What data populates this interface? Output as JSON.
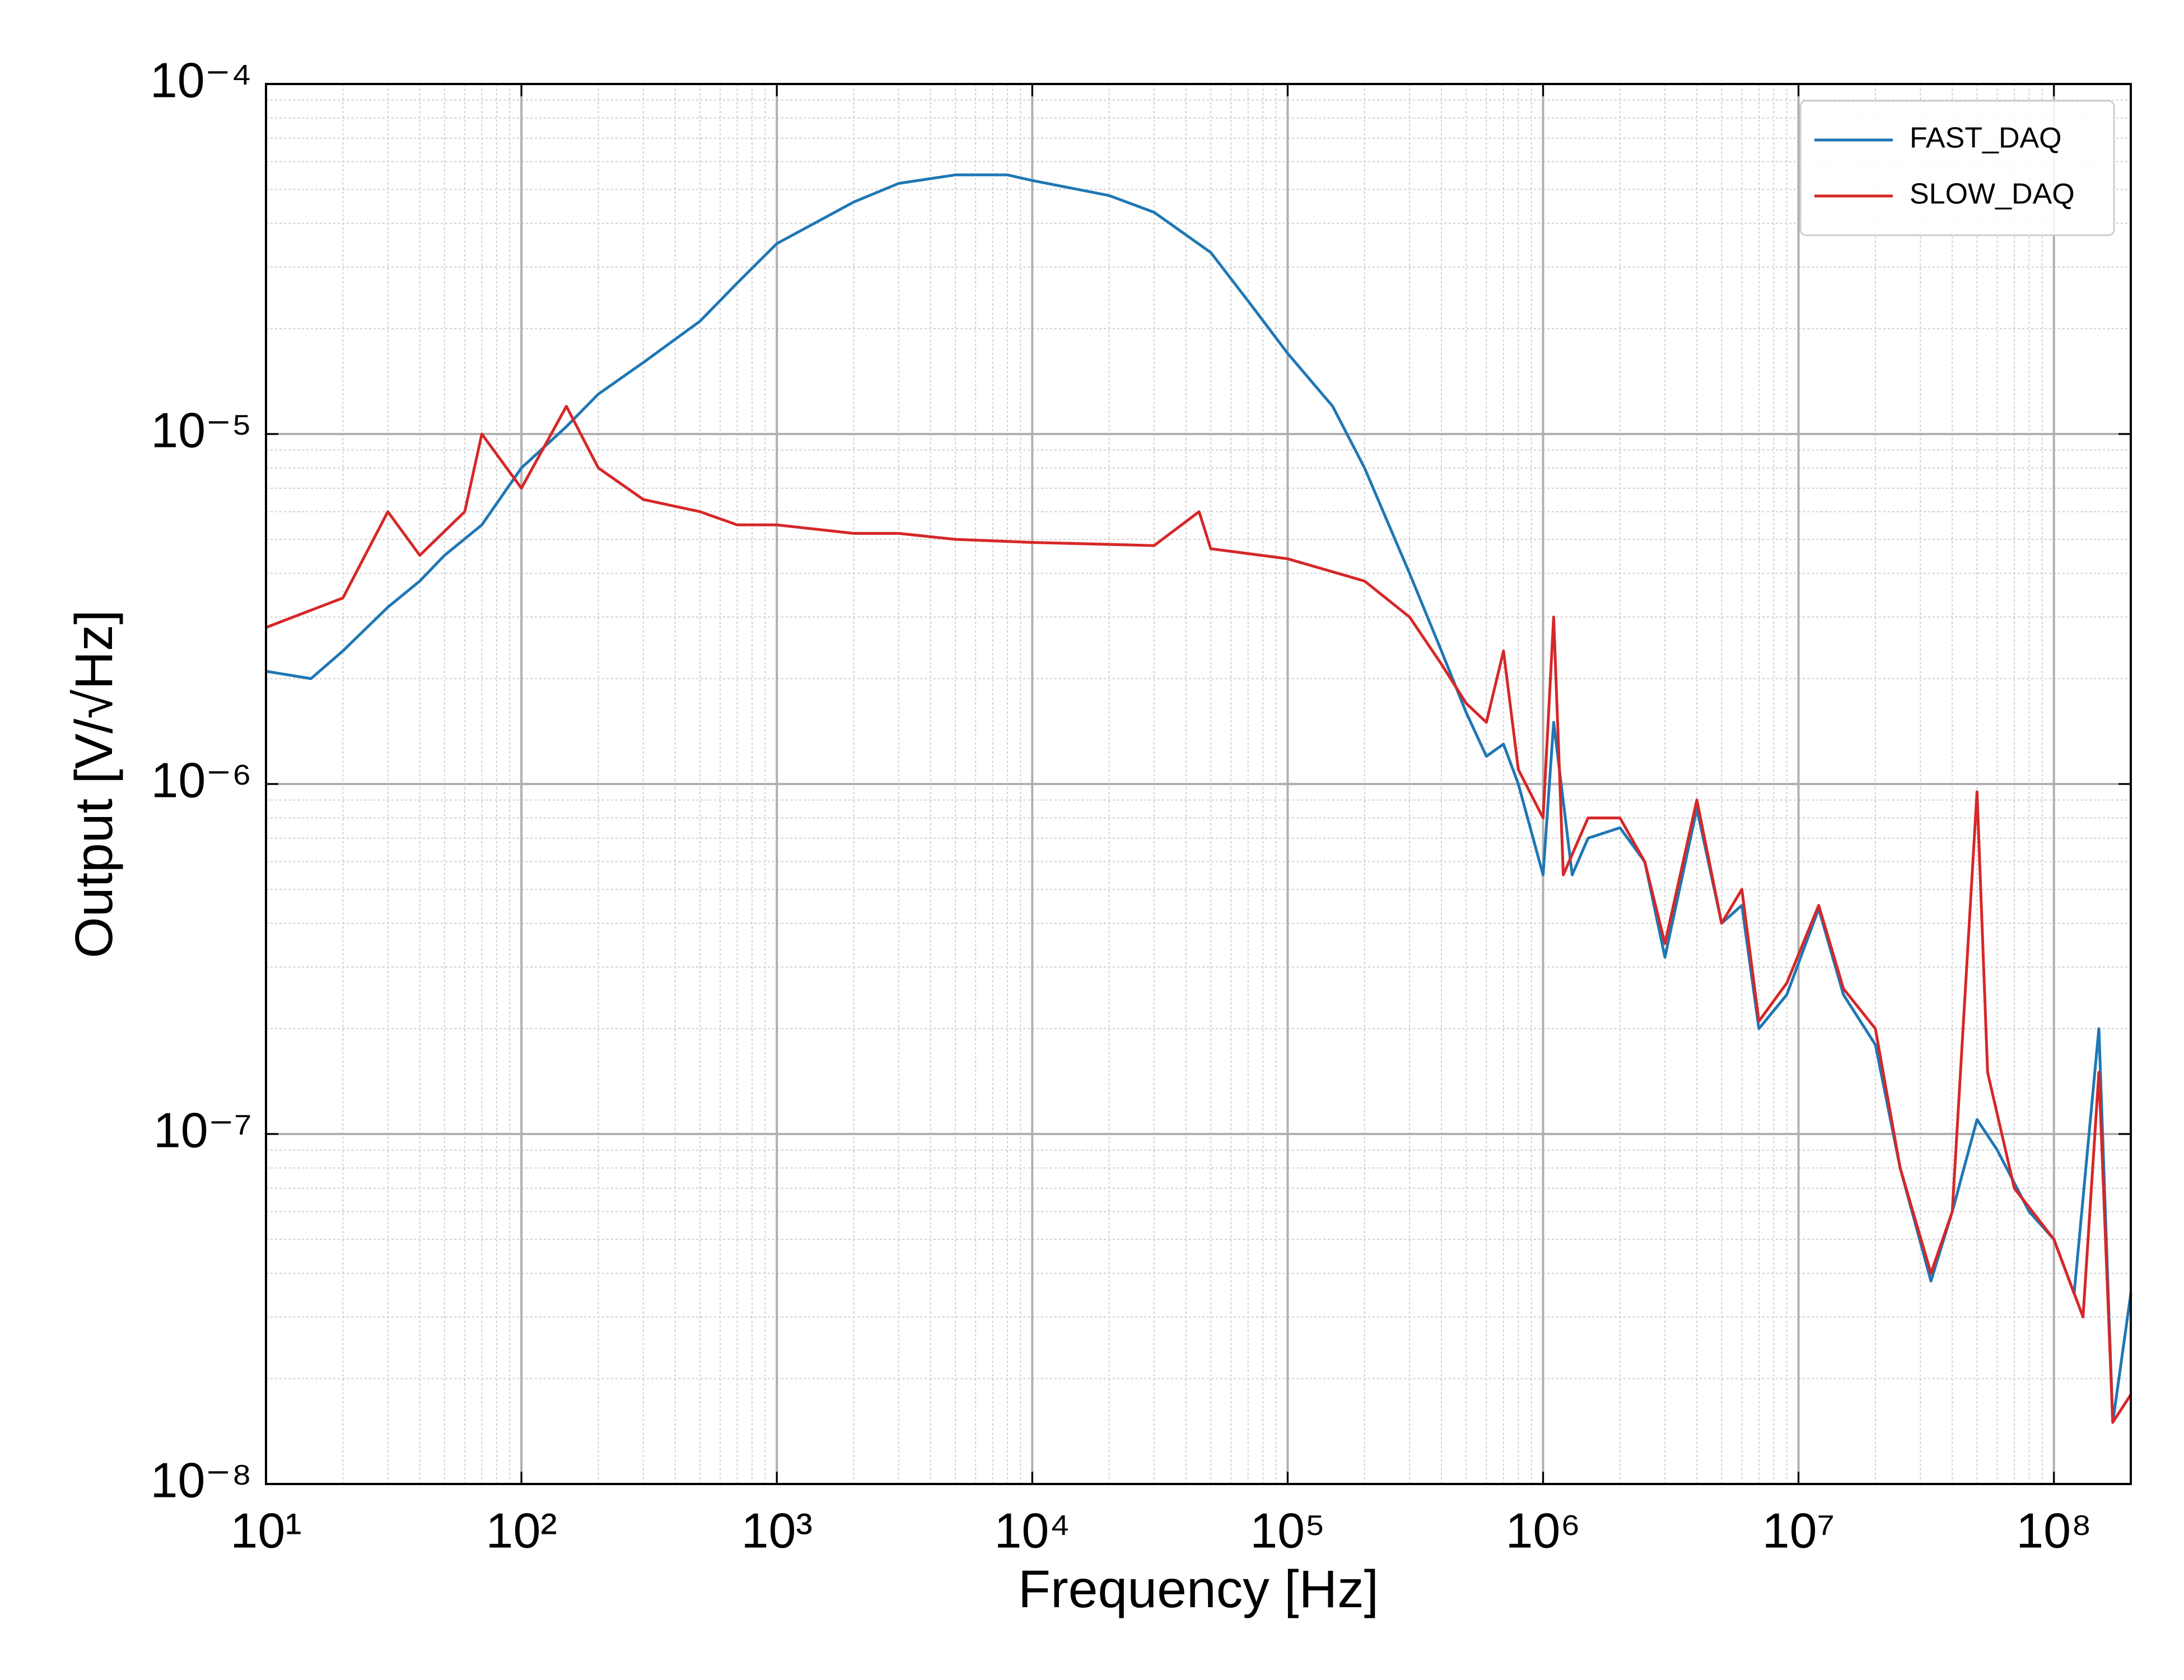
{
  "chart_data": {
    "type": "line",
    "x_label": "Frequency [Hz]",
    "y_label": "Output [V/√Hz]",
    "x_scale": "log",
    "y_scale": "log",
    "xlim": [
      10,
      200000000
    ],
    "ylim": [
      1e-08,
      0.0001
    ],
    "xticks": [
      {
        "value": 10,
        "label": "10¹"
      },
      {
        "value": 100,
        "label": "10²"
      },
      {
        "value": 1000,
        "label": "10³"
      },
      {
        "value": 10000,
        "label": "10⁴"
      },
      {
        "value": 100000,
        "label": "10⁵"
      },
      {
        "value": 1000000,
        "label": "10⁶"
      },
      {
        "value": 10000000,
        "label": "10⁷"
      },
      {
        "value": 100000000,
        "label": "10⁸"
      }
    ],
    "yticks": [
      {
        "value": 1e-08,
        "label": "10⁻⁸"
      },
      {
        "value": 1e-07,
        "label": "10⁻⁷"
      },
      {
        "value": 1e-06,
        "label": "10⁻⁶"
      },
      {
        "value": 1e-05,
        "label": "10⁻⁵"
      },
      {
        "value": 0.0001,
        "label": "10⁻⁴"
      }
    ],
    "grid": true,
    "legend": "upper right",
    "series": [
      {
        "name": "FAST_DAQ",
        "color": "#1f77b4",
        "x": [
          10,
          15,
          20,
          30,
          40,
          50,
          70,
          100,
          150,
          200,
          300,
          500,
          700,
          1000,
          2000,
          3000,
          5000,
          8000,
          10000,
          20000,
          30000,
          50000,
          70000,
          100000,
          150000,
          200000,
          300000,
          400000,
          500000,
          600000,
          700000,
          800000,
          1000000,
          1100000,
          1300000,
          1500000,
          2000000,
          2500000,
          3000000,
          4000000,
          5000000,
          6000000,
          7000000,
          9000000,
          12000000,
          15000000,
          20000000,
          25000000,
          33000000,
          40000000,
          50000000,
          60000000,
          80000000,
          100000000,
          120000000,
          150000000,
          170000000,
          200000000
        ],
        "values": [
          2.1e-06,
          2e-06,
          2.4e-06,
          3.2e-06,
          3.8e-06,
          4.5e-06,
          5.5e-06,
          8e-06,
          1.05e-05,
          1.3e-05,
          1.6e-05,
          2.1e-05,
          2.7e-05,
          3.5e-05,
          4.6e-05,
          5.2e-05,
          5.5e-05,
          5.5e-05,
          5.3e-05,
          4.8e-05,
          4.3e-05,
          3.3e-05,
          2.4e-05,
          1.7e-05,
          1.2e-05,
          8e-06,
          4e-06,
          2.4e-06,
          1.6e-06,
          1.2e-06,
          1.3e-06,
          1e-06,
          5.5e-07,
          1.5e-06,
          5.5e-07,
          7e-07,
          7.5e-07,
          6e-07,
          3.2e-07,
          8.5e-07,
          4e-07,
          4.5e-07,
          2e-07,
          2.5e-07,
          4.4e-07,
          2.5e-07,
          1.8e-07,
          8e-08,
          3.8e-08,
          6e-08,
          1.1e-07,
          9e-08,
          6e-08,
          5e-08,
          3.5e-08,
          2e-07,
          1.5e-08,
          3.5e-08
        ]
      },
      {
        "name": "SLOW_DAQ",
        "color": "#d62728",
        "x": [
          10,
          20,
          30,
          40,
          60,
          70,
          100,
          150,
          200,
          300,
          500,
          700,
          1000,
          2000,
          3000,
          5000,
          10000,
          30000,
          45000,
          50000,
          100000,
          200000,
          300000,
          400000,
          500000,
          600000,
          700000,
          800000,
          1000000,
          1100000,
          1200000,
          1500000,
          2000000,
          2500000,
          3000000,
          4000000,
          5000000,
          6000000,
          7000000,
          9000000,
          12000000,
          15000000,
          20000000,
          25000000,
          33000000,
          40000000,
          50000000,
          55000000,
          70000000,
          100000000,
          130000000,
          150000000,
          170000000,
          200000000
        ],
        "values": [
          2.8e-06,
          3.4e-06,
          6e-06,
          4.5e-06,
          6e-06,
          1e-05,
          7e-06,
          1.2e-05,
          8e-06,
          6.5e-06,
          6e-06,
          5.5e-06,
          5.5e-06,
          5.2e-06,
          5.2e-06,
          5e-06,
          4.9e-06,
          4.8e-06,
          6e-06,
          4.7e-06,
          4.4e-06,
          3.8e-06,
          3e-06,
          2.2e-06,
          1.7e-06,
          1.5e-06,
          2.4e-06,
          1.1e-06,
          8e-07,
          3e-06,
          5.5e-07,
          8e-07,
          8e-07,
          6e-07,
          3.5e-07,
          9e-07,
          4e-07,
          5e-07,
          2.1e-07,
          2.7e-07,
          4.5e-07,
          2.6e-07,
          2e-07,
          8e-08,
          4e-08,
          6e-08,
          9.5e-07,
          1.5e-07,
          7e-08,
          5e-08,
          3e-08,
          1.5e-07,
          1.5e-08,
          1.8e-08
        ]
      }
    ]
  }
}
